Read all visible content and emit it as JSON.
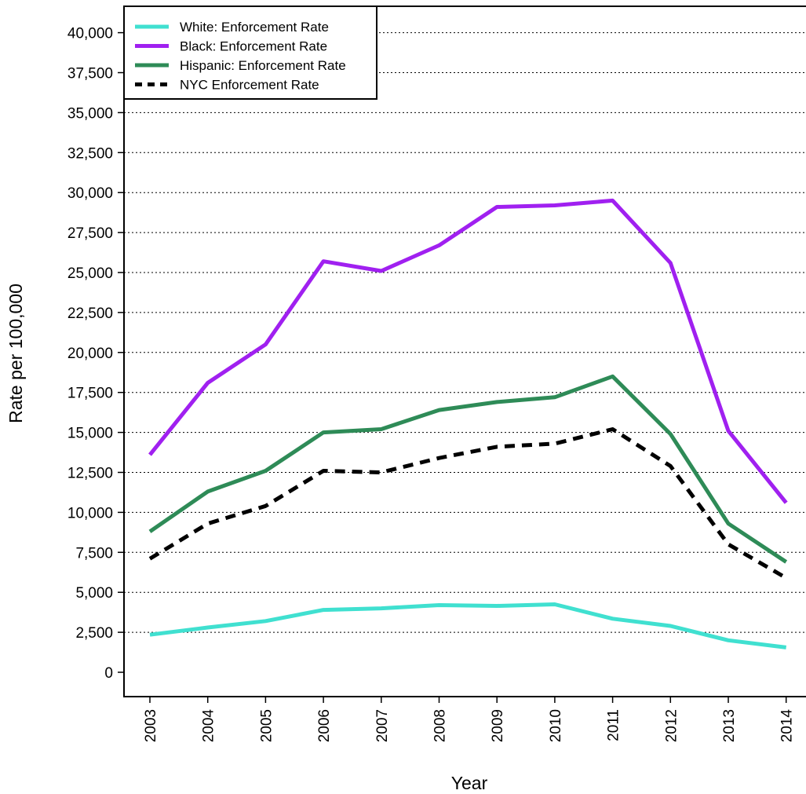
{
  "chart_data": {
    "type": "line",
    "title": "",
    "xlabel": "Year",
    "ylabel": "Rate per 100,000",
    "x": [
      2003,
      2004,
      2005,
      2006,
      2007,
      2008,
      2009,
      2010,
      2011,
      2012,
      2013,
      2014
    ],
    "xlim": [
      2002.6,
      2014.3
    ],
    "ylim": [
      -1500,
      41500
    ],
    "yticks": [
      0,
      2500,
      5000,
      7500,
      10000,
      12500,
      15000,
      17500,
      20000,
      22500,
      25000,
      27500,
      30000,
      32500,
      35000,
      37500,
      40000
    ],
    "ytick_labels": [
      "0",
      "2,500",
      "5,000",
      "7,500",
      "10,000",
      "12,500",
      "15,000",
      "17,500",
      "20,000",
      "22,500",
      "25,000",
      "27,500",
      "30,000",
      "32,500",
      "35,000",
      "37,500",
      "40,000"
    ],
    "xtick_labels": [
      "2003",
      "2004",
      "2005",
      "2006",
      "2007",
      "2008",
      "2009",
      "2010",
      "2011",
      "2012",
      "2013",
      "2014"
    ],
    "grid": "horizontal-dotted",
    "legend_position": "top-left",
    "series": [
      {
        "name": "White: Enforcement Rate",
        "color": "#40E0D0",
        "dash": "solid",
        "values": [
          2350,
          2800,
          3200,
          3900,
          4000,
          4200,
          4150,
          4250,
          3350,
          2900,
          2000,
          1550
        ]
      },
      {
        "name": "Black: Enforcement Rate",
        "color": "#A020F0",
        "dash": "solid",
        "values": [
          13600,
          18100,
          20500,
          25700,
          25100,
          26700,
          29100,
          29200,
          29500,
          25600,
          15100,
          10600
        ]
      },
      {
        "name": "Hispanic: Enforcement Rate",
        "color": "#2E8B57",
        "dash": "solid",
        "values": [
          8800,
          11300,
          12600,
          15000,
          15200,
          16400,
          16900,
          17200,
          18500,
          14900,
          9300,
          6900
        ]
      },
      {
        "name": "NYC Enforcement Rate",
        "color": "#000000",
        "dash": "dashed",
        "values": [
          7100,
          9300,
          10400,
          12600,
          12500,
          13400,
          14100,
          14300,
          15200,
          12900,
          8000,
          5900
        ]
      }
    ]
  }
}
